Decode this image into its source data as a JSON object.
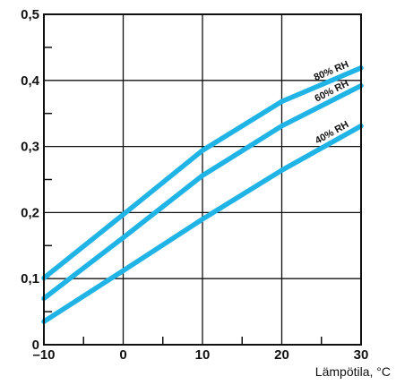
{
  "chart_data": {
    "type": "line",
    "title": "",
    "xlabel": "Lämpötila, °C",
    "ylabel": "",
    "xlim": [
      -10,
      30
    ],
    "ylim": [
      0,
      0.5
    ],
    "x_ticks": [
      -10,
      0,
      10,
      20,
      30
    ],
    "x_tick_labels": [
      "–10",
      "0",
      "10",
      "20",
      "30"
    ],
    "y_ticks": [
      0,
      0.1,
      0.2,
      0.3,
      0.4,
      0.5
    ],
    "y_tick_labels": [
      "0",
      "0,1",
      "0,2",
      "0,3",
      "0,4",
      "0,5"
    ],
    "grid": true,
    "line_color": "#1fb3e6",
    "series": [
      {
        "name": "80% RH",
        "x": [
          -10,
          0,
          10,
          20,
          30
        ],
        "y": [
          0.101,
          0.197,
          0.294,
          0.368,
          0.419
        ]
      },
      {
        "name": "60% RH",
        "x": [
          -10,
          0,
          10,
          20,
          30
        ],
        "y": [
          0.07,
          0.162,
          0.256,
          0.331,
          0.392
        ]
      },
      {
        "name": "40% RH",
        "x": [
          -10,
          0,
          10,
          20,
          30
        ],
        "y": [
          0.035,
          0.112,
          0.19,
          0.264,
          0.331
        ]
      }
    ]
  }
}
